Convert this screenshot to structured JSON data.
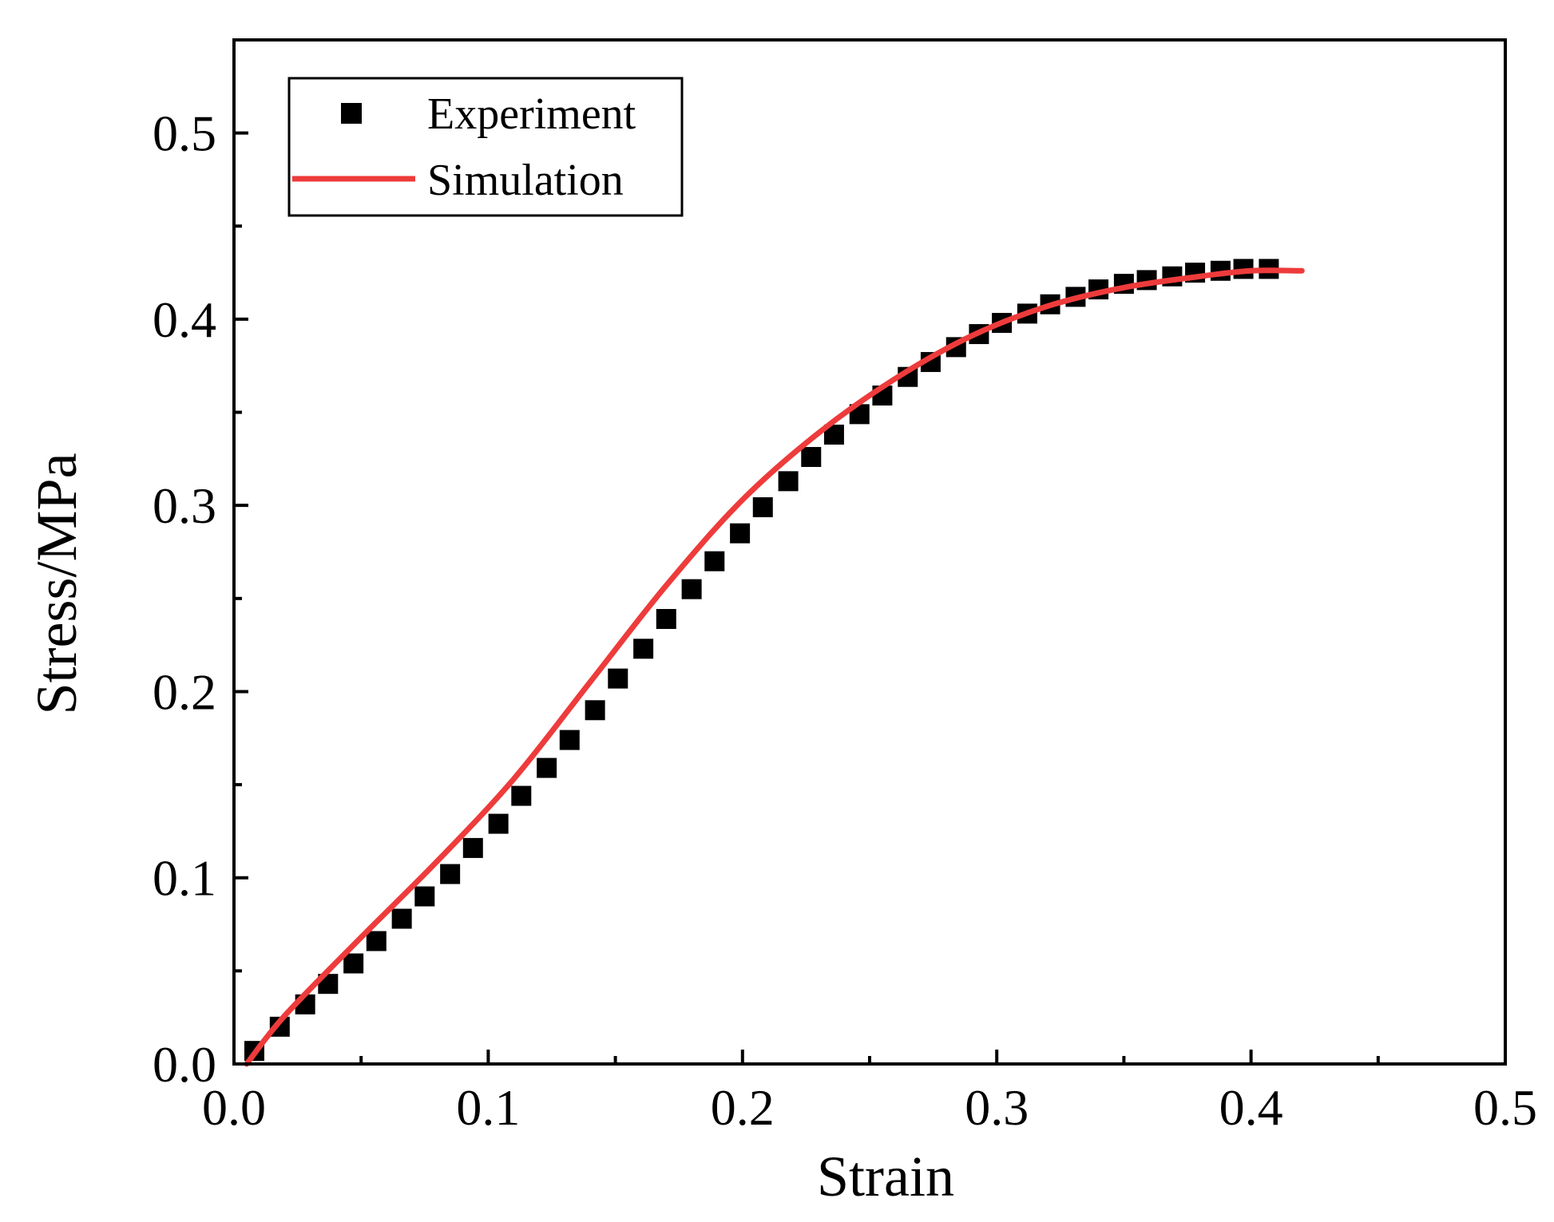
{
  "chart_data": {
    "type": "scatter",
    "title": "",
    "xlabel": "Strain",
    "ylabel": "Stress/MPa",
    "xlim": [
      0.0,
      0.5
    ],
    "ylim": [
      0.0,
      0.55
    ],
    "xticks": [
      0.0,
      0.1,
      0.2,
      0.3,
      0.4,
      0.5
    ],
    "xtick_labels": [
      "0.0",
      "0.1",
      "0.2",
      "0.3",
      "0.4",
      "0.5"
    ],
    "yticks": [
      0.0,
      0.1,
      0.2,
      0.3,
      0.4,
      0.5
    ],
    "ytick_labels": [
      "0.0",
      "0.1",
      "0.2",
      "0.3",
      "0.4",
      "0.5"
    ],
    "grid": false,
    "legend_position": "top-left",
    "series": [
      {
        "name": "Experiment",
        "kind": "markers",
        "marker": "square",
        "color": "#000000",
        "points": [
          [
            0.008,
            0.007
          ],
          [
            0.018,
            0.02
          ],
          [
            0.028,
            0.032
          ],
          [
            0.037,
            0.043
          ],
          [
            0.047,
            0.054
          ],
          [
            0.056,
            0.066
          ],
          [
            0.066,
            0.078
          ],
          [
            0.075,
            0.09
          ],
          [
            0.085,
            0.102
          ],
          [
            0.094,
            0.116
          ],
          [
            0.104,
            0.129
          ],
          [
            0.113,
            0.144
          ],
          [
            0.123,
            0.159
          ],
          [
            0.132,
            0.174
          ],
          [
            0.142,
            0.19
          ],
          [
            0.151,
            0.207
          ],
          [
            0.161,
            0.223
          ],
          [
            0.17,
            0.239
          ],
          [
            0.18,
            0.255
          ],
          [
            0.189,
            0.27
          ],
          [
            0.199,
            0.285
          ],
          [
            0.208,
            0.299
          ],
          [
            0.218,
            0.313
          ],
          [
            0.227,
            0.326
          ],
          [
            0.236,
            0.338
          ],
          [
            0.246,
            0.349
          ],
          [
            0.255,
            0.359
          ],
          [
            0.265,
            0.369
          ],
          [
            0.274,
            0.377
          ],
          [
            0.284,
            0.385
          ],
          [
            0.293,
            0.392
          ],
          [
            0.302,
            0.398
          ],
          [
            0.312,
            0.403
          ],
          [
            0.321,
            0.408
          ],
          [
            0.331,
            0.412
          ],
          [
            0.34,
            0.416
          ],
          [
            0.35,
            0.419
          ],
          [
            0.359,
            0.421
          ],
          [
            0.369,
            0.423
          ],
          [
            0.378,
            0.425
          ],
          [
            0.388,
            0.426
          ],
          [
            0.397,
            0.427
          ],
          [
            0.407,
            0.427
          ]
        ]
      },
      {
        "name": "Simulation",
        "kind": "line",
        "color": "#ee3b3b",
        "points": [
          [
            0.005,
            0.0
          ],
          [
            0.02,
            0.026
          ],
          [
            0.05,
            0.068
          ],
          [
            0.08,
            0.109
          ],
          [
            0.11,
            0.153
          ],
          [
            0.14,
            0.205
          ],
          [
            0.17,
            0.257
          ],
          [
            0.2,
            0.303
          ],
          [
            0.23,
            0.339
          ],
          [
            0.26,
            0.368
          ],
          [
            0.29,
            0.391
          ],
          [
            0.32,
            0.407
          ],
          [
            0.35,
            0.417
          ],
          [
            0.38,
            0.423
          ],
          [
            0.4,
            0.426
          ],
          [
            0.42,
            0.426
          ]
        ]
      }
    ]
  }
}
